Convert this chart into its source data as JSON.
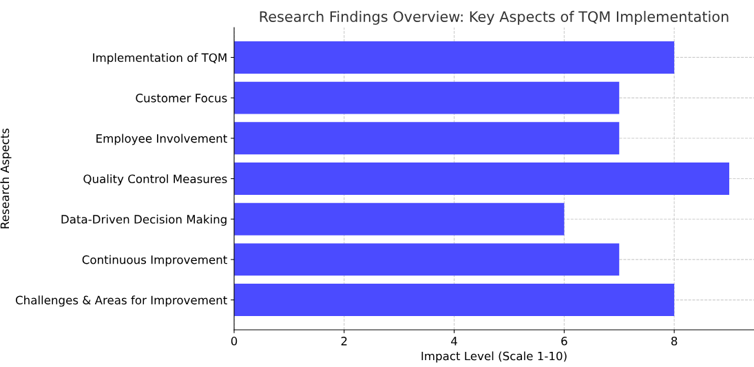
{
  "chart_data": {
    "type": "bar",
    "orientation": "horizontal",
    "title": "Research Findings Overview: Key Aspects of TQM Implementation",
    "xlabel": "Impact Level (Scale 1-10)",
    "ylabel": "Research Aspects",
    "categories": [
      "Implementation of TQM",
      "Customer Focus",
      "Employee Involvement",
      "Quality Control Measures",
      "Data-Driven Decision Making",
      "Continuous Improvement",
      "Challenges & Areas for Improvement"
    ],
    "values": [
      8,
      7,
      7,
      9,
      6,
      7,
      8
    ],
    "color": "#4b4bff",
    "xlim": [
      0,
      9.45
    ],
    "xticks": [
      0,
      2,
      4,
      6,
      8
    ],
    "grid": true
  }
}
